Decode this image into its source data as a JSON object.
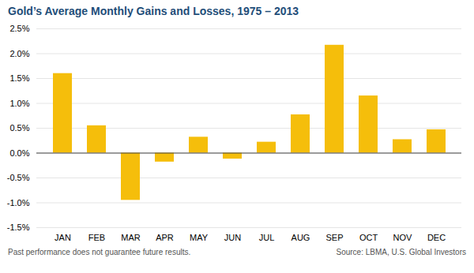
{
  "chart_data": {
    "type": "bar",
    "title": "Gold’s Average Monthly Gains and Losses, 1975 – 2013",
    "categories": [
      "JAN",
      "FEB",
      "MAR",
      "APR",
      "MAY",
      "JUN",
      "JUL",
      "AUG",
      "SEP",
      "OCT",
      "NOV",
      "DEC"
    ],
    "values": [
      1.6,
      0.55,
      -0.95,
      -0.18,
      0.32,
      -0.12,
      0.22,
      0.77,
      2.17,
      1.15,
      0.27,
      0.47
    ],
    "color": "#F5BE0B",
    "ylim": [
      -1.5,
      2.5
    ],
    "yticks": [
      {
        "value": -1.5,
        "label": "-1.5%"
      },
      {
        "value": -1.0,
        "label": "-1.0%"
      },
      {
        "value": -0.5,
        "label": "-0.5%"
      },
      {
        "value": 0.0,
        "label": "0.0%"
      },
      {
        "value": 0.5,
        "label": "0.5%"
      },
      {
        "value": 1.0,
        "label": "1.0%"
      },
      {
        "value": 1.5,
        "label": "1.5%"
      },
      {
        "value": 2.0,
        "label": "2.0%"
      },
      {
        "value": 2.5,
        "label": "2.5%"
      }
    ],
    "grid": true,
    "annotations": [
      "Past performance does not guarantee future results.",
      "Source: LBMA, U.S. Global Investors"
    ]
  }
}
